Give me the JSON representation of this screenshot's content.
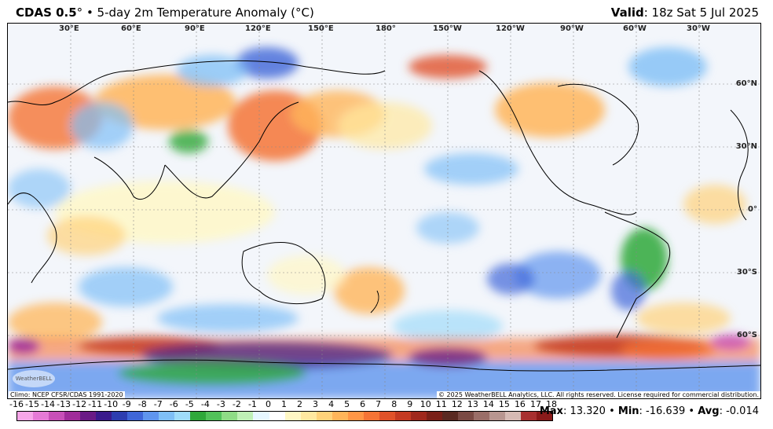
{
  "header": {
    "title_main": "CDAS 0.5",
    "title_rest": "° • 5-day 2m Temperature Anomaly (°C)",
    "valid_label": "Valid",
    "valid_value": ": 18z Sat 5 Jul 2025"
  },
  "map": {
    "lon_labels": [
      "30°E",
      "60°E",
      "90°E",
      "120°E",
      "150°E",
      "180°",
      "150°W",
      "120°W",
      "90°W",
      "60°W",
      "30°W"
    ],
    "lat_labels": [
      "60°N",
      "30°N",
      "0°",
      "30°S",
      "60°S"
    ],
    "climo_note": "Climo: NCEP CFSR/CDAS 1991-2020",
    "copyright": "© 2025 WeatherBELL Analytics, LLC. All rights reserved. License required for commercial distribution.",
    "logo_text": "WeatherBELL"
  },
  "colorbar": {
    "labels": [
      "-16",
      "-15",
      "-14",
      "-13",
      "-12",
      "-11",
      "-10",
      "-9",
      "-8",
      "-7",
      "-6",
      "-5",
      "-4",
      "-3",
      "-2",
      "-1",
      "0",
      "1",
      "2",
      "3",
      "4",
      "5",
      "6",
      "7",
      "8",
      "9",
      "10",
      "11",
      "12",
      "13",
      "14",
      "15",
      "16",
      "17",
      "18"
    ],
    "colors": [
      "#f7a6e8",
      "#e67ad6",
      "#c84fb8",
      "#a02c9a",
      "#6a1a86",
      "#3a1a8c",
      "#2d3db0",
      "#3f66d8",
      "#5f95ee",
      "#7fbff6",
      "#9fdcfa",
      "#2fa83a",
      "#52c25a",
      "#8fdc86",
      "#bff0b6",
      "#e6f7ff",
      "#ffffff",
      "#fff7c4",
      "#ffe8a0",
      "#ffd27a",
      "#ffb55a",
      "#ff9646",
      "#f57436",
      "#e0522a",
      "#c43a22",
      "#a0281c",
      "#7a2018",
      "#5a2a22",
      "#7a4a44",
      "#9a6e68",
      "#b89690",
      "#d6bab4",
      "#a83030",
      "#8a1a1a"
    ]
  },
  "stats": {
    "max_label": "Max",
    "max_value": ": 13.320",
    "sep1": " • ",
    "min_label": "Min",
    "min_value": ": -16.639",
    "sep2": " • ",
    "avg_label": "Avg",
    "avg_value": ": -0.014"
  }
}
